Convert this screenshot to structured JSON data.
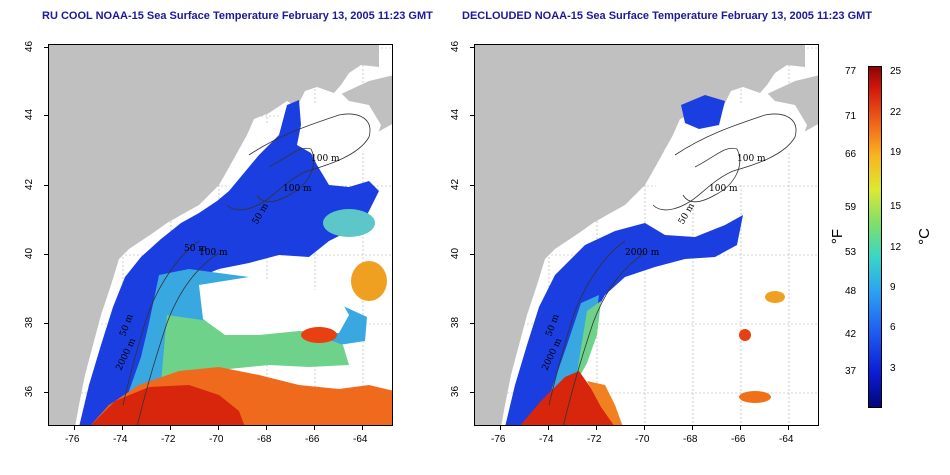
{
  "titles": {
    "left": "RU COOL NOAA-15 Sea Surface Temperature February 13, 2005 11:23 GMT",
    "right": "DECLOUDED NOAA-15 Sea Surface Temperature February 13, 2005 11:23 GMT"
  },
  "axes": {
    "x_ticks": [
      "-76",
      "-74",
      "-72",
      "-70",
      "-68",
      "-66",
      "-64"
    ],
    "y_ticks": [
      "46",
      "44",
      "42",
      "40",
      "38",
      "36"
    ]
  },
  "contours": {
    "left": [
      "100 m",
      "100 m",
      "50 m",
      "50 m",
      "100 m",
      "50 m",
      "2000 m"
    ],
    "right": [
      "100 m",
      "100 m",
      "50 m",
      "2000 m",
      "50 m",
      "2000 m"
    ]
  },
  "colorbar": {
    "fahrenheit": [
      "77",
      "71",
      "66",
      "59",
      "53",
      "48",
      "42",
      "37"
    ],
    "celsius": [
      "25",
      "22",
      "19",
      "15",
      "12",
      "9",
      "6",
      "3"
    ],
    "f_unit": "°F",
    "c_unit": "°C"
  },
  "colors": {
    "land": "#c0c0c0",
    "cloud": "#ffffff",
    "title": "#1a1a9a"
  }
}
